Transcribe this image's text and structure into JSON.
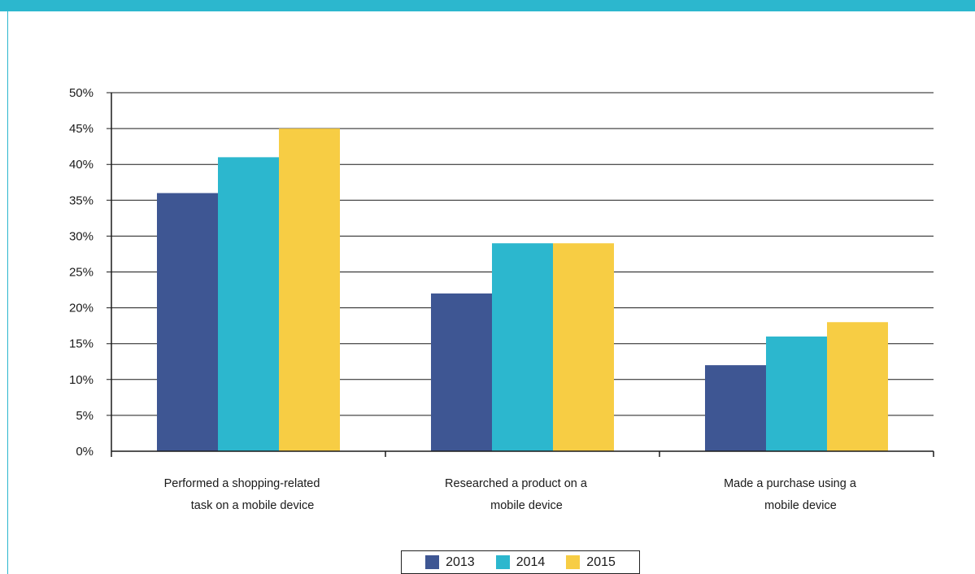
{
  "colors": {
    "frame_accent": "#2cb7ce",
    "series": [
      "#3e5693",
      "#2cb7ce",
      "#f7cd44"
    ]
  },
  "chart_data": {
    "type": "bar",
    "categories": [
      [
        "Performed a shopping-related",
        "task on a mobile device"
      ],
      [
        "Researched a product on a",
        "mobile device"
      ],
      [
        "Made a purchase using a",
        "mobile device"
      ]
    ],
    "series": [
      {
        "name": "2013",
        "values": [
          36,
          22,
          12
        ]
      },
      {
        "name": "2014",
        "values": [
          41,
          29,
          16
        ]
      },
      {
        "name": "2015",
        "values": [
          45,
          29,
          18
        ]
      }
    ],
    "ylim": [
      0,
      50
    ],
    "yticks": [
      "0%",
      "5%",
      "10%",
      "15%",
      "20%",
      "25%",
      "30%",
      "35%",
      "40%",
      "45%",
      "50%"
    ],
    "grid": true,
    "legend_position": "bottom-center"
  },
  "legend": [
    {
      "label": "2013"
    },
    {
      "label": "2014"
    },
    {
      "label": "2015"
    }
  ]
}
